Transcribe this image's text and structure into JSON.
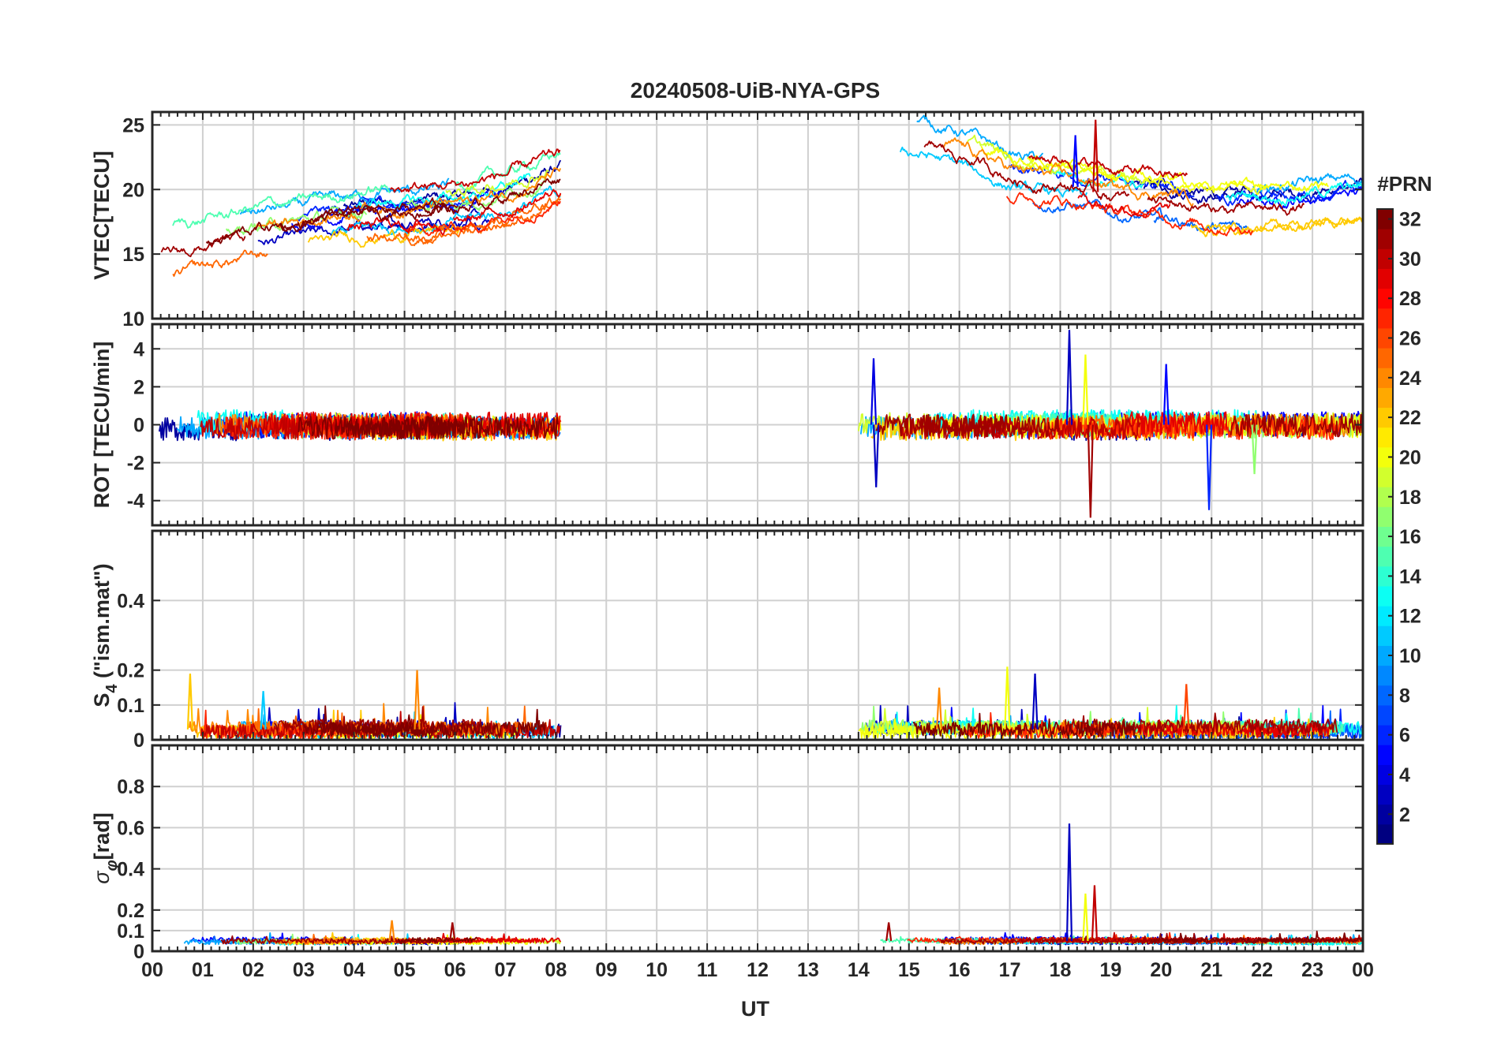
{
  "chart_data": {
    "type": "line",
    "title": "20240508-UiB-NYA-GPS",
    "xlabel": "UT",
    "x_ticks": [
      "00",
      "01",
      "02",
      "03",
      "04",
      "05",
      "06",
      "07",
      "08",
      "09",
      "10",
      "11",
      "12",
      "13",
      "14",
      "15",
      "16",
      "17",
      "18",
      "19",
      "20",
      "21",
      "22",
      "23",
      "00"
    ],
    "xlim": [
      0,
      24
    ],
    "data_gap_hours": [
      8.1,
      14.0
    ],
    "panels": [
      {
        "id": "vtec",
        "ylabel": "VTEC[TECU]",
        "ylim": [
          10,
          26
        ],
        "y_ticks": [
          10,
          15,
          20,
          25
        ],
        "y_tick_labels": [
          "10",
          "15",
          "20",
          "25"
        ],
        "trend": [
          [
            0,
            15
          ],
          [
            1,
            15.8
          ],
          [
            2,
            16.8
          ],
          [
            3,
            17.2
          ],
          [
            4,
            18
          ],
          [
            5,
            18.2
          ],
          [
            6,
            18.5
          ],
          [
            7,
            19.5
          ],
          [
            8,
            21
          ],
          [
            14,
            23.5
          ],
          [
            15,
            23.8
          ],
          [
            16,
            22.5
          ],
          [
            17,
            20.8
          ],
          [
            18,
            20.5
          ],
          [
            19,
            19.5
          ],
          [
            20,
            19.2
          ],
          [
            21,
            18.5
          ],
          [
            22,
            18.6
          ],
          [
            23,
            19
          ],
          [
            24,
            19.3
          ]
        ],
        "spread": 2.0,
        "noise": 0.45,
        "spikes": [
          {
            "x": 18.7,
            "y": 25.4,
            "prn": 30
          },
          {
            "x": 18.3,
            "y": 24.2,
            "prn": 5
          }
        ]
      },
      {
        "id": "rot",
        "ylabel": "ROT [TECU/min]",
        "ylim": [
          -5.3,
          5.3
        ],
        "y_ticks": [
          -4,
          -2,
          0,
          2,
          4
        ],
        "y_tick_labels": [
          "-4",
          "-2",
          "0",
          "2",
          "4"
        ],
        "trend": [
          [
            0,
            0
          ],
          [
            8,
            0
          ],
          [
            14,
            0
          ],
          [
            24,
            0
          ]
        ],
        "spread": 0.25,
        "noise": 0.6,
        "spikes": [
          {
            "x": 18.18,
            "y": 5.0,
            "prn": 3
          },
          {
            "x": 18.6,
            "y": -4.9,
            "prn": 31
          },
          {
            "x": 20.95,
            "y": -4.5,
            "prn": 6
          },
          {
            "x": 14.3,
            "y": 3.5,
            "prn": 4
          },
          {
            "x": 14.35,
            "y": -3.3,
            "prn": 3
          },
          {
            "x": 20.1,
            "y": 3.2,
            "prn": 5
          },
          {
            "x": 18.5,
            "y": 3.7,
            "prn": 20
          },
          {
            "x": 21.85,
            "y": -2.6,
            "prn": 17
          }
        ]
      },
      {
        "id": "s4",
        "ylabel": "S4 (\"ism.mat\")",
        "ylabel_main": "S",
        "ylabel_sub": "4",
        "ylabel_rest": " (\"ism.mat\")",
        "ylim": [
          0,
          0.6
        ],
        "y_ticks": [
          0,
          0.1,
          0.2,
          0.4
        ],
        "y_tick_labels": [
          "0",
          "0.1",
          "0.2",
          "0.4"
        ],
        "trend": [
          [
            0,
            0.03
          ],
          [
            24,
            0.03
          ]
        ],
        "spread": 0.01,
        "noise": 0.02,
        "spikes": [
          {
            "x": 16.95,
            "y": 0.21,
            "prn": 20
          },
          {
            "x": 5.25,
            "y": 0.2,
            "prn": 24
          },
          {
            "x": 0.75,
            "y": 0.19,
            "prn": 22
          },
          {
            "x": 17.5,
            "y": 0.19,
            "prn": 3
          },
          {
            "x": 20.5,
            "y": 0.16,
            "prn": 26
          },
          {
            "x": 15.6,
            "y": 0.15,
            "prn": 24
          },
          {
            "x": 2.2,
            "y": 0.14,
            "prn": 11
          }
        ]
      },
      {
        "id": "sigma_phi",
        "ylabel": "σφ[rad]",
        "ylabel_main": "σ",
        "ylabel_sub": "φ",
        "ylabel_rest": "[rad]",
        "ylim": [
          0,
          1.0
        ],
        "y_ticks": [
          0,
          0.1,
          0.2,
          0.4,
          0.6,
          0.8
        ],
        "y_tick_labels": [
          "0",
          "0.1",
          "0.2",
          "0.4",
          "0.6",
          "0.8"
        ],
        "trend": [
          [
            0,
            0.05
          ],
          [
            24,
            0.05
          ]
        ],
        "spread": 0.008,
        "noise": 0.012,
        "spikes": [
          {
            "x": 18.18,
            "y": 0.62,
            "prn": 3
          },
          {
            "x": 18.68,
            "y": 0.32,
            "prn": 30
          },
          {
            "x": 18.5,
            "y": 0.28,
            "prn": 20
          },
          {
            "x": 14.6,
            "y": 0.14,
            "prn": 31
          },
          {
            "x": 4.75,
            "y": 0.15,
            "prn": 24
          },
          {
            "x": 5.95,
            "y": 0.14,
            "prn": 31
          }
        ]
      }
    ],
    "colorbar": {
      "label": "#PRN",
      "colormap": "jet",
      "range": [
        1,
        32
      ],
      "tick_values": [
        2,
        4,
        6,
        8,
        10,
        12,
        14,
        16,
        18,
        20,
        22,
        24,
        26,
        28,
        30,
        32
      ],
      "tick_labels": [
        "2",
        "4",
        "6",
        "8",
        "10",
        "12",
        "14",
        "16",
        "18",
        "20",
        "22",
        "24",
        "26",
        "28",
        "30",
        "32"
      ]
    },
    "series_prns": [
      2,
      3,
      5,
      6,
      8,
      10,
      11,
      13,
      15,
      17,
      19,
      20,
      22,
      24,
      25,
      27,
      29,
      30,
      31,
      32
    ]
  }
}
